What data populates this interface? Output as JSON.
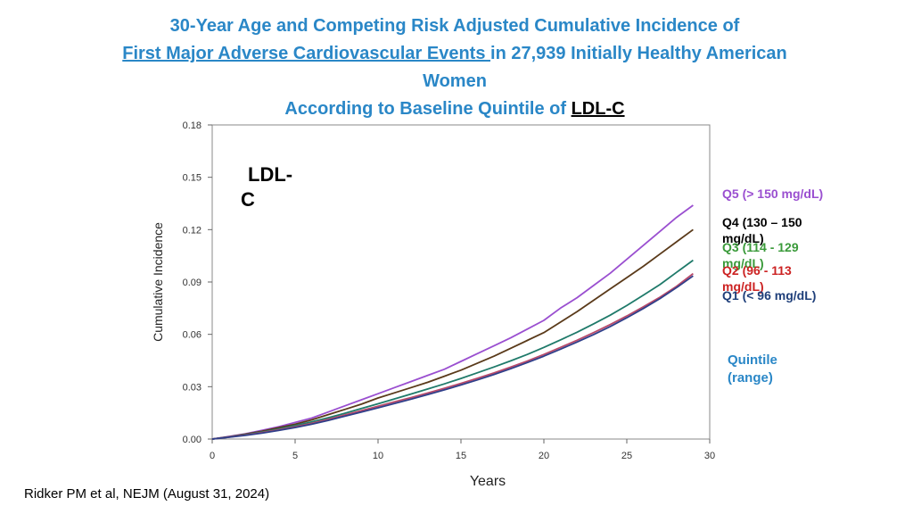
{
  "header": {
    "title_line1": "30-Year Age and Competing Risk Adjusted Cumulative Incidence of",
    "title_line2_underlined": "First Major Adverse Cardiovascular Events ",
    "title_line2_rest": "in 27,939 Initially Healthy American",
    "title_line3": "Women",
    "title_line4_prefix": "According to Baseline Quintile of ",
    "title_line4_highlight": "LDL-C"
  },
  "citation": "Ridker PM et al, NEJM (August 31, 2024)",
  "plot_label": {
    "line1": "LDL-",
    "line2": "C"
  },
  "legend": {
    "title": "Quintile (range)",
    "items": [
      {
        "label": "Q5  (> 150 mg/dL)",
        "color": "#9a4fd0"
      },
      {
        "label": "Q4  (130 – 150 mg/dL)",
        "color": "#000000"
      },
      {
        "label": "Q3  (114 - 129 mg/dL)",
        "color": "#3a9a3a"
      },
      {
        "label": "Q2  (96 - 113 mg/dL)",
        "color": "#cc2222"
      },
      {
        "label": "Q1  (< 96 mg/dL)",
        "color": "#1f3f7a"
      }
    ]
  },
  "chart_data": {
    "type": "line",
    "title": "30-Year Age and Competing Risk Adjusted Cumulative Incidence of First Major Adverse Cardiovascular Events in 27,939 Initially Healthy American Women According to Baseline Quintile of LDL-C",
    "xlabel": "Years",
    "ylabel": "Cumulative Incidence",
    "xlim": [
      0,
      30
    ],
    "ylim": [
      0,
      0.18
    ],
    "xticks": [
      "0",
      "5",
      "10",
      "15",
      "20",
      "25",
      "30"
    ],
    "yticks": [
      "0.00",
      "0.03",
      "0.06",
      "0.09",
      "0.12",
      "0.15",
      "0.18"
    ],
    "x": [
      0,
      1,
      2,
      3,
      4,
      5,
      6,
      7,
      8,
      9,
      10,
      11,
      12,
      13,
      14,
      15,
      16,
      17,
      18,
      19,
      20,
      21,
      22,
      23,
      24,
      25,
      26,
      27,
      28,
      29
    ],
    "series": [
      {
        "name": "Q5 (> 150 mg/dL)",
        "color": "#9a4fd0",
        "values": [
          0,
          0.0015,
          0.003,
          0.005,
          0.007,
          0.0095,
          0.012,
          0.0155,
          0.019,
          0.0225,
          0.026,
          0.0295,
          0.033,
          0.0365,
          0.04,
          0.0445,
          0.049,
          0.0535,
          0.058,
          0.063,
          0.068,
          0.075,
          0.081,
          0.088,
          0.095,
          0.103,
          0.111,
          0.119,
          0.127,
          0.134
        ]
      },
      {
        "name": "Q4 (130 – 150 mg/dL)",
        "color": "#5a3a1a",
        "values": [
          0,
          0.0013,
          0.0028,
          0.0045,
          0.0065,
          0.0085,
          0.011,
          0.014,
          0.017,
          0.02,
          0.0235,
          0.0265,
          0.0295,
          0.0325,
          0.036,
          0.0395,
          0.0435,
          0.0475,
          0.052,
          0.0565,
          0.061,
          0.067,
          0.073,
          0.0795,
          0.086,
          0.0925,
          0.099,
          0.106,
          0.113,
          0.12
        ]
      },
      {
        "name": "Q3 (114 - 129 mg/dL)",
        "color": "#1f7a6a",
        "values": [
          0,
          0.0012,
          0.0025,
          0.004,
          0.0058,
          0.0077,
          0.0098,
          0.0122,
          0.0148,
          0.0175,
          0.0202,
          0.023,
          0.0258,
          0.0287,
          0.0316,
          0.0347,
          0.038,
          0.0413,
          0.0448,
          0.0485,
          0.0525,
          0.0568,
          0.0612,
          0.066,
          0.071,
          0.0765,
          0.0825,
          0.0885,
          0.0955,
          0.1025
        ]
      },
      {
        "name": "Q2 (96 - 113 mg/dL)",
        "color": "#b84a6a",
        "values": [
          0,
          0.0011,
          0.0023,
          0.0037,
          0.0053,
          0.007,
          0.009,
          0.0113,
          0.0138,
          0.0163,
          0.0188,
          0.0213,
          0.0238,
          0.0264,
          0.0291,
          0.0319,
          0.0348,
          0.0379,
          0.0412,
          0.0447,
          0.0485,
          0.0525,
          0.0566,
          0.061,
          0.0656,
          0.0705,
          0.0758,
          0.0813,
          0.0875,
          0.0948
        ]
      },
      {
        "name": "Q1 (< 96 mg/dL)",
        "color": "#2f3f8a",
        "values": [
          0,
          0.001,
          0.0021,
          0.0034,
          0.0049,
          0.0066,
          0.0085,
          0.0107,
          0.0131,
          0.0155,
          0.0179,
          0.0204,
          0.0229,
          0.0255,
          0.0282,
          0.031,
          0.0339,
          0.037,
          0.0403,
          0.0438,
          0.0475,
          0.0515,
          0.0556,
          0.0599,
          0.0645,
          0.0695,
          0.0748,
          0.0805,
          0.0868,
          0.0935
        ]
      }
    ]
  }
}
